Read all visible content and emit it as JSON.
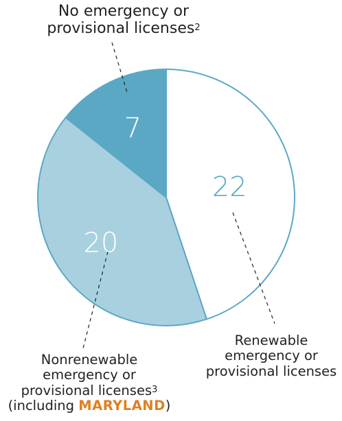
{
  "chart_data": {
    "type": "pie",
    "slices": [
      {
        "label": "Renewable emergency or provisional licenses",
        "value": 22,
        "color": "#ffffff",
        "text_color": "#5ba8c4"
      },
      {
        "label": "Nonrenewable emergency or provisional licenses",
        "value": 20,
        "color": "#a9d0df",
        "text_color": "#ffffff"
      },
      {
        "label": "No emergency or provisional licenses",
        "value": 7,
        "color": "#5ba8c4",
        "text_color": "#ffffff"
      }
    ],
    "stroke_color": "#5ba8c4"
  },
  "labels": {
    "top_line1": "No emergency or",
    "top_line2": "provisional licenses",
    "top_footnote": "2",
    "right_line1": "Renewable",
    "right_line2": "emergency or",
    "right_line3": "provisional licenses",
    "bottom_line1": "Nonrenewable",
    "bottom_line2": "emergency or",
    "bottom_line3": "provisional licenses",
    "bottom_footnote": "3",
    "bottom_line4_prefix": "(including ",
    "bottom_line4_highlight": "MARYLAND",
    "bottom_line4_suffix": ")"
  }
}
